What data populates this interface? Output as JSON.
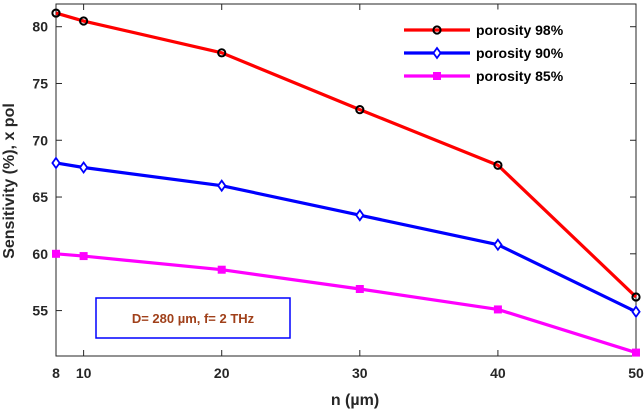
{
  "chart_data": {
    "type": "line",
    "x": [
      8,
      10,
      20,
      30,
      40,
      50
    ],
    "xlabel": "n (µm)",
    "ylabel": "Sensitivity (%), x pol",
    "xlim": [
      8,
      50
    ],
    "ylim": [
      51,
      82
    ],
    "xticks": [
      "8",
      "10",
      "20",
      "30",
      "40",
      "50"
    ],
    "yticks": [
      "55",
      "60",
      "65",
      "70",
      "75",
      "80"
    ],
    "grid": false,
    "legend_position": "top-right",
    "series": [
      {
        "name": "porosity 98%",
        "color": "#ff0000",
        "marker": "circle",
        "values": [
          81.2,
          80.5,
          77.7,
          72.7,
          67.8,
          56.2
        ]
      },
      {
        "name": "porosity 90%",
        "color": "#0000ff",
        "marker": "diamond",
        "values": [
          68.0,
          67.6,
          66.0,
          63.4,
          60.8,
          54.9
        ]
      },
      {
        "name": "porosity 85%",
        "color": "#ff00ff",
        "marker": "square",
        "values": [
          60.0,
          59.8,
          58.6,
          56.9,
          55.1,
          51.3
        ]
      }
    ],
    "annotation": {
      "text": "D= 280 µm, f= 2 THz",
      "text_color": "#a0401a",
      "border_color": "#0000ff"
    }
  }
}
